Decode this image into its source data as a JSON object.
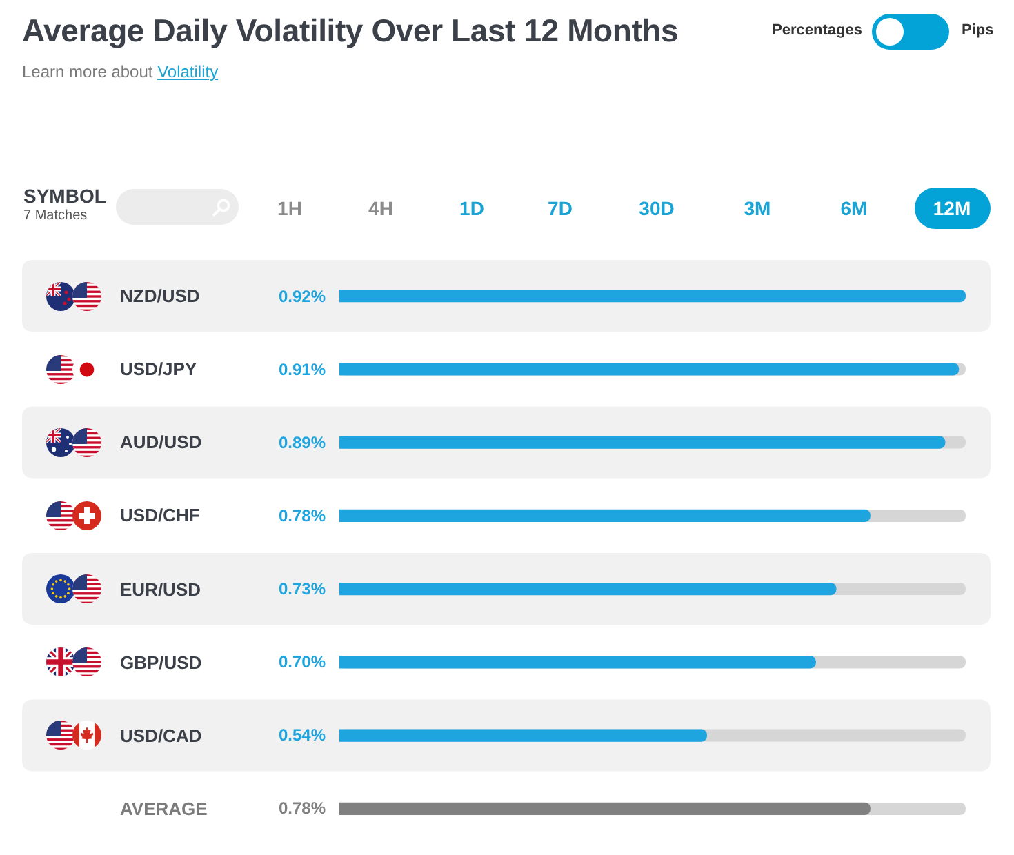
{
  "chart_data": {
    "type": "bar",
    "orientation": "horizontal",
    "title": "Average Daily Volatility Over Last 12 Months",
    "subtitle": "Learn more about Volatility",
    "categories": [
      "NZD/USD",
      "USD/JPY",
      "AUD/USD",
      "USD/CHF",
      "EUR/USD",
      "GBP/USD",
      "USD/CAD",
      "AVERAGE"
    ],
    "values": [
      0.92,
      0.91,
      0.89,
      0.78,
      0.73,
      0.7,
      0.54,
      0.78
    ],
    "colors": [
      "#1ea5e0",
      "#1ea5e0",
      "#1ea5e0",
      "#1ea5e0",
      "#1ea5e0",
      "#1ea5e0",
      "#1ea5e0",
      "#808080"
    ],
    "value_labels": [
      "0.92%",
      "0.91%",
      "0.89%",
      "0.78%",
      "0.73%",
      "0.70%",
      "0.54%",
      "0.78%"
    ],
    "xlim": [
      0,
      0.92
    ],
    "tick_labels": "y",
    "annotations": [
      "Percentages",
      "Pips",
      "SYMBOL",
      "7 Matches",
      "1H",
      "4H",
      "1D",
      "7D",
      "30D",
      "3M",
      "6M",
      "12M"
    ]
  }
}
